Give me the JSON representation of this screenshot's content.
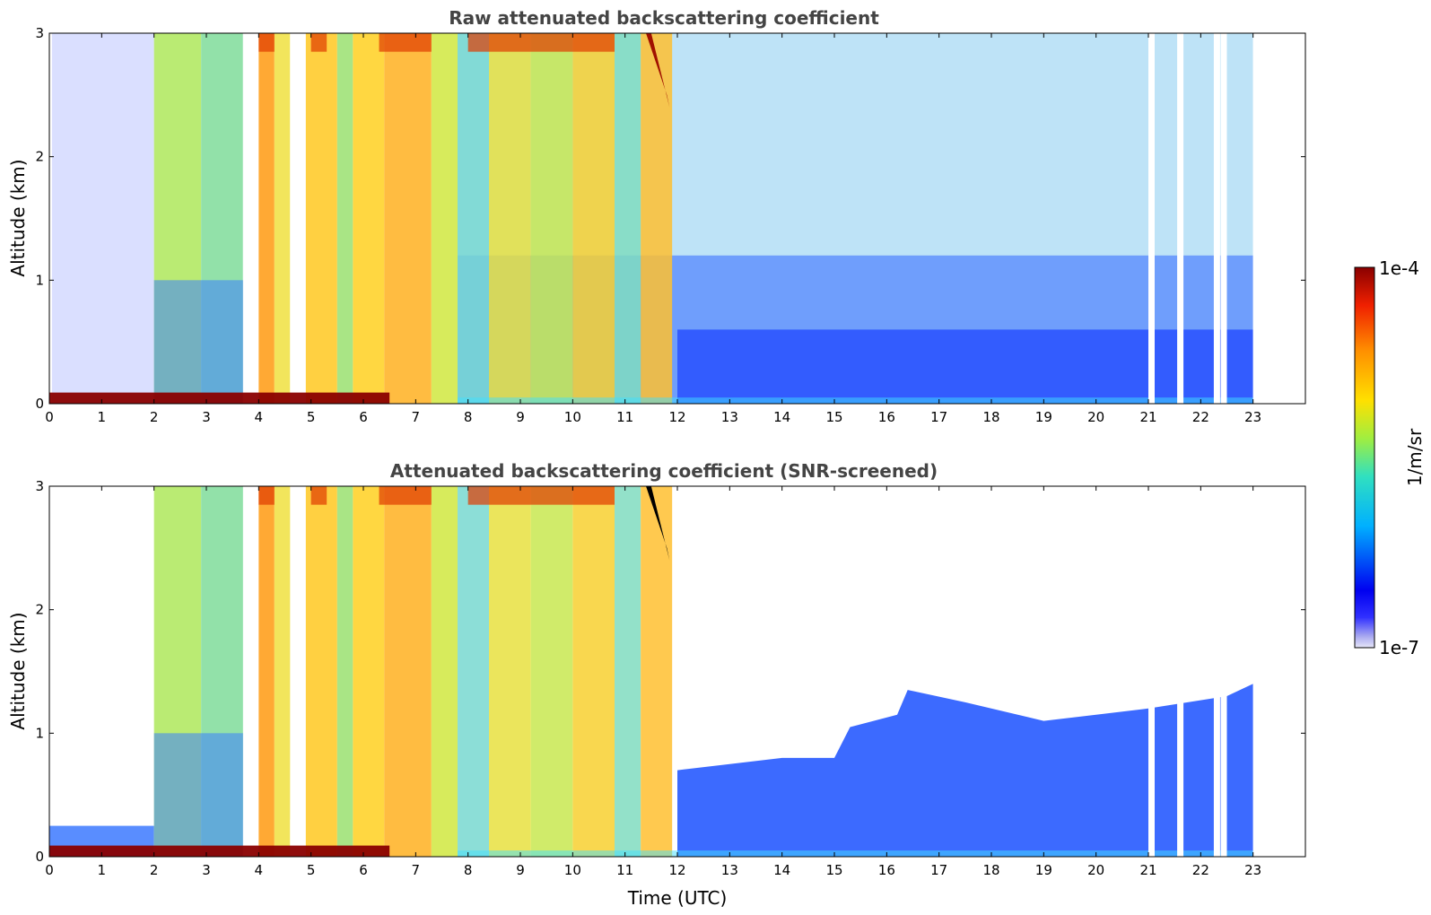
{
  "chart_data": [
    {
      "type": "heatmap",
      "title": "Raw attenuated backscattering coefficient",
      "xlabel": "",
      "ylabel": "Altitude (km)",
      "xlim": [
        0,
        24
      ],
      "ylim": [
        0,
        3
      ],
      "x_ticks": [
        "0",
        "1",
        "2",
        "3",
        "4",
        "5",
        "6",
        "7",
        "8",
        "9",
        "10",
        "11",
        "12",
        "13",
        "14",
        "15",
        "16",
        "17",
        "18",
        "19",
        "20",
        "21",
        "22",
        "23"
      ],
      "y_ticks": [
        "0",
        "1",
        "2",
        "3"
      ],
      "data_end_hour": 23,
      "gap_hours": [
        21.0,
        21.55,
        22.25,
        22.38
      ],
      "screened": false
    },
    {
      "type": "heatmap",
      "title": "Attenuated backscattering coefficient (SNR-screened)",
      "xlabel": "Time (UTC)",
      "ylabel": "Altitude (km)",
      "xlim": [
        0,
        24
      ],
      "ylim": [
        0,
        3
      ],
      "x_ticks": [
        "0",
        "1",
        "2",
        "3",
        "4",
        "5",
        "6",
        "7",
        "8",
        "9",
        "10",
        "11",
        "12",
        "13",
        "14",
        "15",
        "16",
        "17",
        "18",
        "19",
        "20",
        "21",
        "22",
        "23"
      ],
      "y_ticks": [
        "0",
        "1",
        "2",
        "3"
      ],
      "data_end_hour": 23,
      "gap_hours": [
        21.0,
        21.55,
        22.25,
        22.38
      ],
      "screened": true
    }
  ],
  "colorbar": {
    "label": "1/m/sr",
    "min_label": "1e-7",
    "max_label": "1e-4",
    "scale": "log",
    "colors": [
      "#e8e8f8",
      "#0000ff",
      "#00aaff",
      "#33ddbb",
      "#aaee44",
      "#ffdd00",
      "#ff8800",
      "#ee2200",
      "#880000"
    ]
  }
}
